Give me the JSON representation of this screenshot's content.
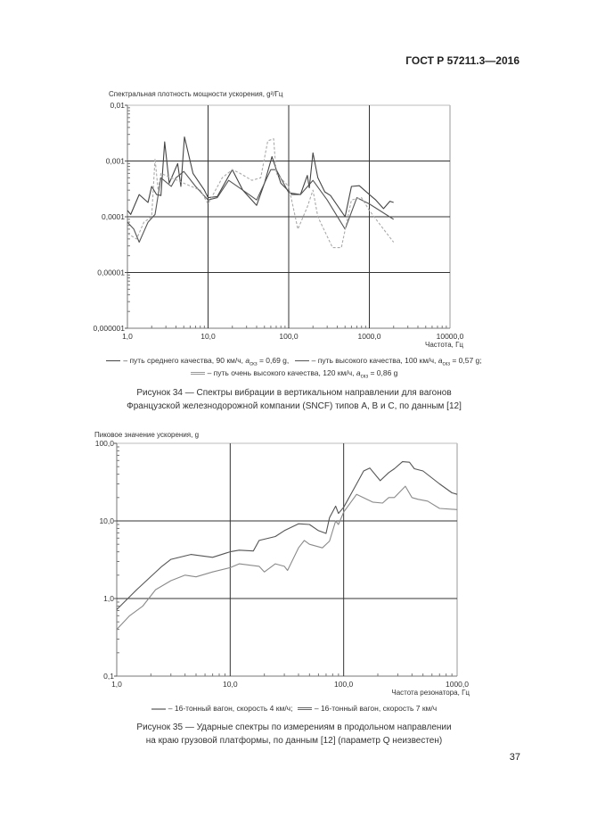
{
  "header": {
    "doc_code": "ГОСТ Р 57211.3—2016"
  },
  "page_number": "37",
  "figure34": {
    "legend": [
      {
        "label": "– путь среднего качества, 90 км/ч, ",
        "a": "a",
        "sub": "скз",
        "value": " = 0,69 g,"
      },
      {
        "label": "– путь высокого качества, 100 км/ч, ",
        "a": "a",
        "sub": "скз",
        "value": " = 0,57 g;"
      },
      {
        "label": "– путь очень высокого качества, 120 км/ч, ",
        "a": "a",
        "sub": "скз",
        "value": " = 0,86 g"
      }
    ],
    "caption_line1": "Рисунок 34 — Спектры вибрации в вертикальном направлении для вагонов",
    "caption_line2": "Французской железнодорожной компании (SNCF) типов А, В и С, по данным [12]"
  },
  "figure35": {
    "legend": [
      {
        "label": "– 16-тонный вагон, скорость 4 км/ч;"
      },
      {
        "label": "– 16-тонный вагон, скорость 7 км/ч"
      }
    ],
    "caption_line1": "Рисунок 35 — Ударные спектры по измерениям в продольном направлении",
    "caption_line2": "на краю грузовой платформы, по данным [12] (параметр Q неизвестен)"
  },
  "chart_data": [
    {
      "type": "line",
      "ylabel": "Спектральная плотность мощности ускорения, g²/Гц",
      "xlabel": "Частота, Гц",
      "x_scale": "log",
      "y_scale": "log",
      "xlim": [
        1,
        10000
      ],
      "ylim": [
        1e-06,
        0.01
      ],
      "x_ticks": [
        "1,0",
        "10,0",
        "100,0",
        "1000,0",
        "10000,0"
      ],
      "y_ticks": [
        "0,01",
        "0,001",
        "0,0001",
        "0,00001",
        "0,000001"
      ],
      "grid": true,
      "series": [
        {
          "name": "путь среднего качества, 90 км/ч",
          "color": "#444444",
          "dash": "",
          "x": [
            1,
            1.1,
            1.4,
            1.8,
            2,
            2.3,
            2.6,
            2.9,
            3.3,
            4.2,
            4.6,
            5.1,
            6.5,
            9,
            10,
            13,
            20,
            27,
            40,
            50,
            62,
            80,
            110,
            140,
            170,
            180,
            200,
            230,
            280,
            330,
            500,
            600,
            750,
            1000,
            1200,
            1500,
            1800,
            2000
          ],
          "y": [
            0.00013,
            0.00011,
            0.00025,
            0.00018,
            0.00035,
            0.00025,
            0.00024,
            0.0022,
            0.0004,
            0.0009,
            0.00035,
            0.0027,
            0.0006,
            0.0003,
            0.00022,
            0.00023,
            0.0007,
            0.0003,
            0.00016,
            0.0004,
            0.0012,
            0.0004,
            0.00025,
            0.00025,
            0.00055,
            0.00033,
            0.0014,
            0.0005,
            0.00028,
            0.00024,
            0.0001,
            0.00035,
            0.00036,
            0.00025,
            0.0002,
            0.00014,
            0.00019,
            0.00018
          ]
        },
        {
          "name": "путь высокого качества, 100 км/ч",
          "color": "#555555",
          "dash": "",
          "x": [
            1,
            1.2,
            1.4,
            1.8,
            2.2,
            2.6,
            3.5,
            4,
            5,
            7,
            10,
            13,
            18,
            27,
            40,
            60,
            70,
            100,
            140,
            200,
            300,
            500,
            700,
            1000,
            2000
          ],
          "y": [
            8e-05,
            6e-05,
            3.5e-05,
            8e-05,
            0.00011,
            0.0005,
            0.00035,
            0.0005,
            0.00065,
            0.00035,
            0.0002,
            0.00022,
            0.00045,
            0.0003,
            0.0002,
            0.0007,
            0.0007,
            0.00027,
            0.00025,
            0.00045,
            0.0002,
            6e-05,
            0.00022,
            0.00017,
            9e-05
          ]
        },
        {
          "name": "путь очень высокого качества, 120 км/ч",
          "color": "#aaaaaa",
          "dash": "3,2",
          "x": [
            1,
            1.3,
            1.6,
            2,
            2.2,
            2.4,
            2.6,
            3.5,
            5,
            8,
            10,
            15,
            20,
            25,
            35,
            45,
            55,
            65,
            70,
            100,
            130,
            170,
            200,
            230,
            350,
            450,
            600,
            800,
            1000,
            1500,
            2000
          ],
          "y": [
            5e-05,
            4e-05,
            8e-05,
            0.0001,
            0.0011,
            0.0003,
            0.0006,
            0.0005,
            0.0004,
            0.0003,
            0.00017,
            0.0005,
            0.0007,
            0.0006,
            0.00045,
            0.0005,
            0.0023,
            0.0025,
            0.0006,
            0.00035,
            6e-05,
            0.00015,
            0.0003,
            0.0001,
            2.8e-05,
            2.8e-05,
            0.0002,
            0.00022,
            0.00013,
            6e-05,
            3.5e-05
          ]
        }
      ]
    },
    {
      "type": "line",
      "ylabel": "Пиковое значение ускорения, g",
      "xlabel": "Частота резонатора, Гц",
      "x_scale": "log",
      "y_scale": "log",
      "xlim": [
        1,
        1000
      ],
      "ylim": [
        0.1,
        100
      ],
      "x_ticks": [
        "1,0",
        "10,0",
        "100,0",
        "1000,0"
      ],
      "y_ticks": [
        "100,0",
        "10,0",
        "1,0",
        "0,1"
      ],
      "grid": true,
      "series": [
        {
          "name": "16-тонный вагон, скорость 4 км/ч",
          "color": "#8a8a8a",
          "x": [
            1,
            1.3,
            1.7,
            2.2,
            3,
            4,
            5,
            7,
            10,
            12,
            18,
            20,
            25,
            30,
            32,
            40,
            45,
            50,
            65,
            75,
            85,
            90,
            100,
            130,
            180,
            220,
            250,
            280,
            350,
            400,
            450,
            550,
            700,
            1000
          ],
          "y": [
            0.4,
            0.6,
            0.8,
            1.3,
            1.7,
            2.0,
            1.9,
            2.2,
            2.5,
            2.8,
            2.6,
            2.2,
            2.8,
            2.6,
            2.3,
            4.5,
            5.6,
            5,
            4.5,
            5.5,
            10,
            9,
            13,
            22,
            17.5,
            17,
            20,
            20,
            28,
            20,
            19,
            18,
            14.5,
            14
          ]
        },
        {
          "name": "16-тонный вагон, скорость 7 км/ч",
          "color": "#555555",
          "x": [
            1,
            1.5,
            2.5,
            3,
            4.5,
            7,
            10,
            12,
            16,
            18,
            25,
            30,
            40,
            50,
            60,
            70,
            75,
            85,
            90,
            100,
            130,
            150,
            170,
            210,
            250,
            280,
            330,
            380,
            420,
            500,
            700,
            900,
            1000
          ],
          "y": [
            0.72,
            1.3,
            2.6,
            3.2,
            3.7,
            3.4,
            4,
            4.2,
            4.1,
            5.6,
            6.3,
            7.5,
            9.2,
            9,
            7.5,
            6.9,
            11,
            15.5,
            12.5,
            15,
            30,
            44,
            48,
            33,
            42,
            47,
            58,
            57,
            47,
            44,
            30,
            23,
            22
          ]
        }
      ]
    }
  ]
}
